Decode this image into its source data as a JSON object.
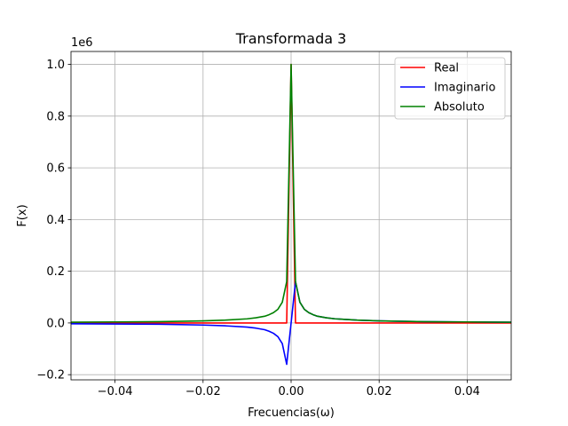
{
  "chart_data": {
    "type": "line",
    "title": "Transformada 3",
    "xlabel": "Frecuencias(ω)",
    "ylabel": "F(x)",
    "offset_text": "1e6",
    "xlim": [
      -0.05,
      0.05
    ],
    "ylim": [
      -0.22,
      1.05
    ],
    "x_scale": "linear",
    "y_multiplier": 1000000,
    "grid": true,
    "legend_position": "top-right",
    "x_ticks": [
      -0.04,
      -0.02,
      0.0,
      0.02,
      0.04
    ],
    "x_tick_labels": [
      "−0.04",
      "−0.02",
      "0.00",
      "0.02",
      "0.04"
    ],
    "y_ticks": [
      -0.2,
      0.0,
      0.2,
      0.4,
      0.6,
      0.8,
      1.0
    ],
    "y_tick_labels": [
      "−0.2",
      "0.0",
      "0.2",
      "0.4",
      "0.6",
      "0.8",
      "1.0"
    ],
    "series": [
      {
        "name": "Real",
        "color": "#ff0000",
        "x": [
          -0.05,
          -0.001,
          0.0,
          0.001,
          0.05
        ],
        "y": [
          0.0,
          0.0,
          1.0,
          0.0,
          0.0
        ]
      },
      {
        "name": "Imaginario",
        "color": "#0000ff",
        "x": [
          -0.05,
          -0.04,
          -0.03,
          -0.02,
          -0.015,
          -0.01,
          -0.008,
          -0.006,
          -0.005,
          -0.004,
          -0.003,
          -0.002,
          -0.001,
          0.0,
          0.001,
          0.002,
          0.003,
          0.004,
          0.005,
          0.006,
          0.008,
          0.01,
          0.015,
          0.02,
          0.03,
          0.04,
          0.05
        ],
        "y": [
          -0.003,
          -0.004,
          -0.005,
          -0.008,
          -0.011,
          -0.016,
          -0.02,
          -0.026,
          -0.032,
          -0.04,
          -0.053,
          -0.08,
          -0.16,
          0.0,
          0.16,
          0.08,
          0.053,
          0.04,
          0.032,
          0.026,
          0.02,
          0.016,
          0.011,
          0.008,
          0.005,
          0.004,
          0.003
        ]
      },
      {
        "name": "Absoluto",
        "color": "#008000",
        "x": [
          -0.05,
          -0.04,
          -0.03,
          -0.02,
          -0.015,
          -0.01,
          -0.008,
          -0.006,
          -0.005,
          -0.004,
          -0.003,
          -0.002,
          -0.001,
          0.0,
          0.001,
          0.002,
          0.003,
          0.004,
          0.005,
          0.006,
          0.008,
          0.01,
          0.015,
          0.02,
          0.03,
          0.04,
          0.05
        ],
        "y": [
          0.003,
          0.004,
          0.005,
          0.008,
          0.011,
          0.016,
          0.02,
          0.026,
          0.032,
          0.04,
          0.053,
          0.08,
          0.16,
          1.0,
          0.16,
          0.08,
          0.053,
          0.04,
          0.032,
          0.026,
          0.02,
          0.016,
          0.011,
          0.008,
          0.005,
          0.004,
          0.003
        ]
      }
    ]
  }
}
